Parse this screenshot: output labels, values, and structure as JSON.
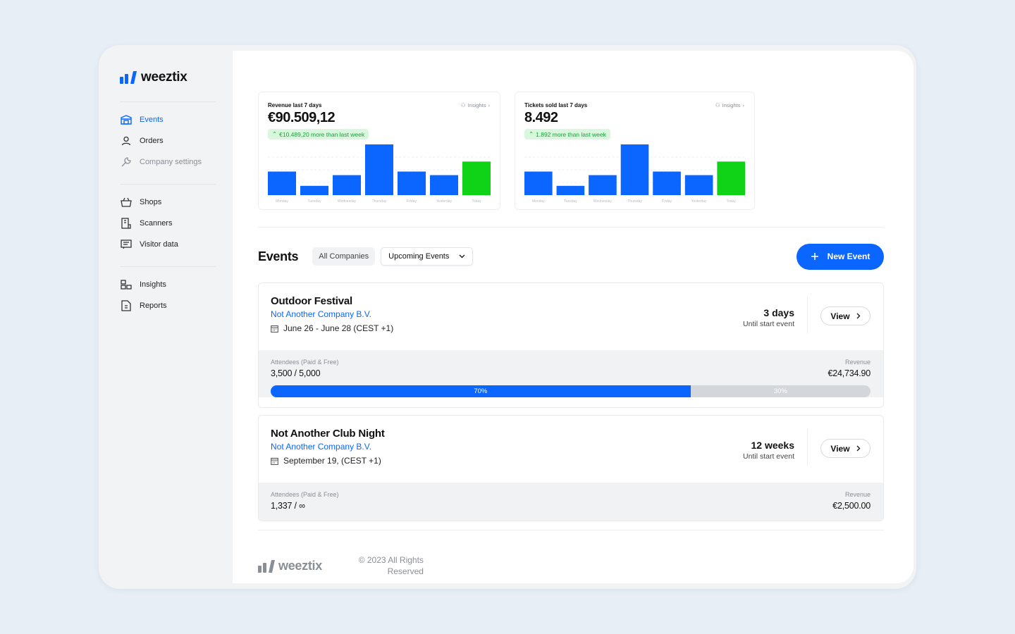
{
  "app": {
    "name": "weeztix"
  },
  "sidebar": {
    "groups": [
      [
        {
          "label": "Events",
          "icon": "ticket-icon",
          "active": true
        },
        {
          "label": "Orders",
          "icon": "user-icon"
        },
        {
          "label": "Company settings",
          "icon": "wrench-icon",
          "muted": true
        }
      ],
      [
        {
          "label": "Shops",
          "icon": "basket-icon"
        },
        {
          "label": "Scanners",
          "icon": "scanner-icon"
        },
        {
          "label": "Visitor data",
          "icon": "list-icon"
        }
      ],
      [
        {
          "label": "Insights",
          "icon": "insights-icon"
        },
        {
          "label": "Reports",
          "icon": "report-icon"
        }
      ]
    ]
  },
  "stats": [
    {
      "label": "Revenue last 7 days",
      "insights_label": "Insights",
      "value": "€90.509,12",
      "delta": "€10.489,20 more than last week",
      "chart_data": {
        "type": "bar",
        "categories": [
          "Monday",
          "Tuesday",
          "Wednesday",
          "Thursday",
          "Friday",
          "Yesterday",
          "Today"
        ],
        "values": [
          33,
          13,
          28,
          71,
          33,
          28,
          47
        ],
        "highlight_last": true
      }
    },
    {
      "label": "Tickets sold last 7 days",
      "insights_label": "Insights",
      "value": "8.492",
      "delta": "1.892 more than last week",
      "chart_data": {
        "type": "bar",
        "categories": [
          "Monday",
          "Tuesday",
          "Wednesday",
          "Thursday",
          "Friday",
          "Yesterday",
          "Today"
        ],
        "values": [
          33,
          13,
          28,
          71,
          33,
          28,
          47
        ],
        "highlight_last": true
      }
    }
  ],
  "events_section": {
    "title": "Events",
    "filter_chip": "All Companies",
    "dropdown_value": "Upcoming Events",
    "new_button": "New Event"
  },
  "events": [
    {
      "name": "Outdoor Festival",
      "company": "Not Another Company B.V.",
      "date": "June 26  - June 28  (CEST +1)",
      "countdown": "3 days",
      "countdown_sub": "Until start event",
      "view_label": "View",
      "attendees_label": "Attendees (Paid & Free)",
      "attendees": "3,500 / 5,000",
      "revenue_label": "Revenue",
      "revenue": "€24,734.90",
      "progress_fraction": 0.7,
      "progress_label": "70%",
      "remaining_label": "30%"
    },
    {
      "name": "Not Another Club Night",
      "company": "Not Another Company B.V.",
      "date": "September 19,  (CEST +1)",
      "countdown": "12 weeks",
      "countdown_sub": "Until start event",
      "view_label": "View",
      "attendees_label": "Attendees (Paid & Free)",
      "attendees": "1,337 / ∞",
      "revenue_label": "Revenue",
      "revenue": "€2,500.00"
    }
  ],
  "footer": {
    "logo": "weeztix",
    "copyright": "© 2023 All Rights Reserved"
  },
  "colors": {
    "accent": "#0a66ff",
    "success": "#10d318",
    "success_bg": "#d9f7dc"
  }
}
